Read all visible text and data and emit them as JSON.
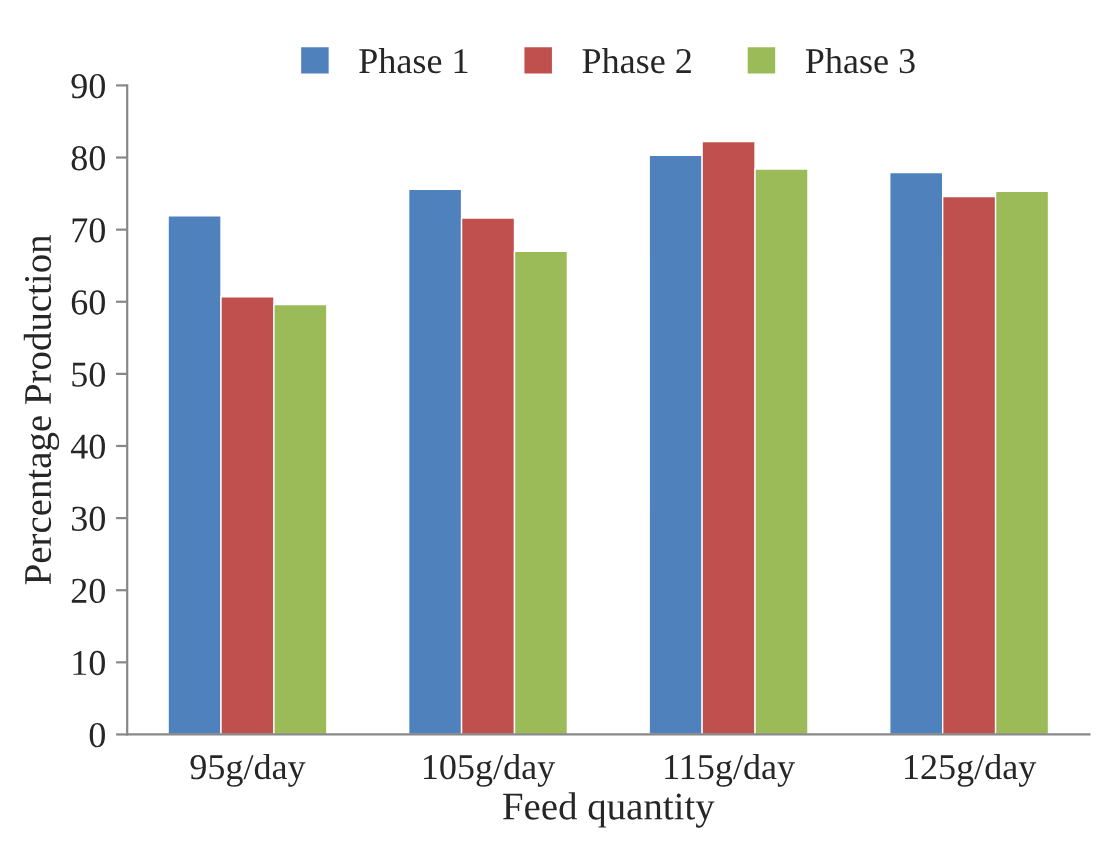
{
  "chart_data": {
    "type": "bar",
    "xlabel": "Feed quantity",
    "ylabel": "Percentage Production",
    "categories": [
      "95g/day",
      "105g/day",
      "115g/day",
      "125g/day"
    ],
    "series": [
      {
        "name": "Phase 1",
        "color": "#4f81bd",
        "values": [
          71.9,
          75.6,
          80.3,
          77.9
        ]
      },
      {
        "name": "Phase 2",
        "color": "#c0504d",
        "values": [
          60.7,
          71.6,
          82.2,
          74.6
        ]
      },
      {
        "name": "Phase 3",
        "color": "#9bbb59",
        "values": [
          59.6,
          67.0,
          78.4,
          75.3
        ]
      }
    ],
    "ylim": [
      0,
      90
    ],
    "yticks": [
      0,
      10,
      20,
      30,
      40,
      50,
      60,
      70,
      80,
      90
    ],
    "grid": false,
    "legend": "top"
  }
}
